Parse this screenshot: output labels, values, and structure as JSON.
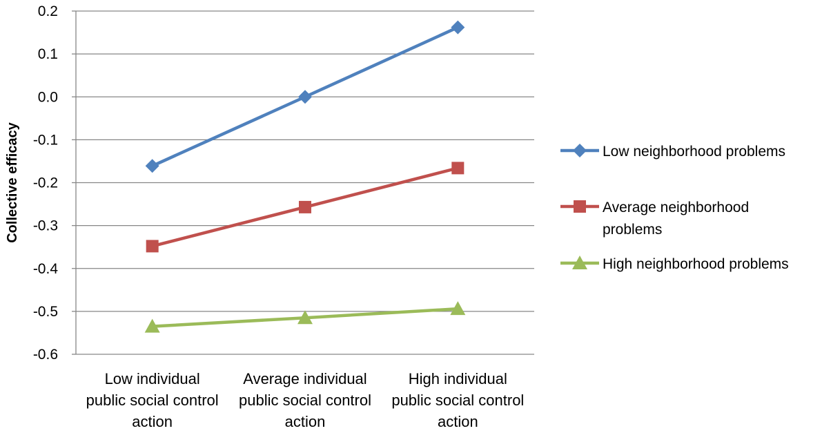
{
  "chart_data": {
    "type": "line",
    "title": "",
    "xlabel": "",
    "ylabel": "Collective efficacy",
    "ylim": [
      -0.6,
      0.2
    ],
    "yticks": [
      "0.2",
      "0.1",
      "0.0",
      "-0.1",
      "-0.2",
      "-0.3",
      "-0.4",
      "-0.5",
      "-0.6"
    ],
    "grid": "horizontal",
    "legend_position": "right",
    "categories": [
      [
        "Low individual",
        "public social control",
        "action"
      ],
      [
        "Average individual",
        "public social control",
        "action"
      ],
      [
        "High individual",
        "public social control",
        "action"
      ]
    ],
    "series": [
      {
        "name": "Low neighborhood problems",
        "legend_lines": [
          "Low neighborhood problems"
        ],
        "values": [
          -0.161,
          0.0,
          0.162
        ],
        "color": "#4F81BD",
        "marker": "diamond"
      },
      {
        "name": "Average neighborhood problems",
        "legend_lines": [
          "Average neighborhood",
          "problems"
        ],
        "values": [
          -0.348,
          -0.257,
          -0.166
        ],
        "color": "#C0504D",
        "marker": "square"
      },
      {
        "name": "High neighborhood problems",
        "legend_lines": [
          "High neighborhood problems"
        ],
        "values": [
          -0.535,
          -0.515,
          -0.494
        ],
        "color": "#9BBB59",
        "marker": "triangle"
      }
    ]
  }
}
